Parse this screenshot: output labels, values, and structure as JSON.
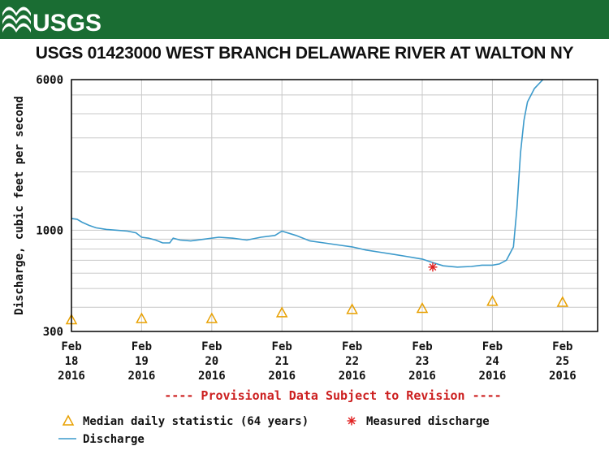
{
  "header": {
    "logo_text": "USGS",
    "title": "USGS 01423000 WEST BRANCH DELAWARE RIVER AT WALTON NY"
  },
  "chart_data": {
    "type": "line",
    "title": "USGS 01423000 WEST BRANCH DELAWARE RIVER AT WALTON NY",
    "ylabel": "Discharge, cubic feet per second",
    "yscale": "log",
    "ylim": [
      300,
      6000
    ],
    "yticks": [
      {
        "value": 300,
        "label": "300"
      },
      {
        "value": 1000,
        "label": "1000"
      },
      {
        "value": 6000,
        "label": "6000"
      }
    ],
    "xticks": [
      {
        "value": 0,
        "label": [
          "Feb",
          "18",
          "2016"
        ]
      },
      {
        "value": 1,
        "label": [
          "Feb",
          "19",
          "2016"
        ]
      },
      {
        "value": 2,
        "label": [
          "Feb",
          "20",
          "2016"
        ]
      },
      {
        "value": 3,
        "label": [
          "Feb",
          "21",
          "2016"
        ]
      },
      {
        "value": 4,
        "label": [
          "Feb",
          "22",
          "2016"
        ]
      },
      {
        "value": 5,
        "label": [
          "Feb",
          "23",
          "2016"
        ]
      },
      {
        "value": 6,
        "label": [
          "Feb",
          "24",
          "2016"
        ]
      },
      {
        "value": 7,
        "label": [
          "Feb",
          "25",
          "2016"
        ]
      }
    ],
    "xlim": [
      0,
      7.5
    ],
    "annotation": "---- Provisional Data Subject to Revision ----",
    "series": [
      {
        "name": "Discharge",
        "color": "#3c9acb",
        "points": [
          [
            0.0,
            1150
          ],
          [
            0.08,
            1140
          ],
          [
            0.15,
            1100
          ],
          [
            0.25,
            1060
          ],
          [
            0.35,
            1030
          ],
          [
            0.5,
            1010
          ],
          [
            0.65,
            1000
          ],
          [
            0.8,
            990
          ],
          [
            0.92,
            970
          ],
          [
            1.0,
            920
          ],
          [
            1.1,
            910
          ],
          [
            1.2,
            890
          ],
          [
            1.3,
            860
          ],
          [
            1.4,
            860
          ],
          [
            1.45,
            910
          ],
          [
            1.55,
            890
          ],
          [
            1.7,
            880
          ],
          [
            1.9,
            900
          ],
          [
            2.1,
            920
          ],
          [
            2.3,
            910
          ],
          [
            2.5,
            890
          ],
          [
            2.7,
            920
          ],
          [
            2.9,
            940
          ],
          [
            3.0,
            990
          ],
          [
            3.2,
            940
          ],
          [
            3.4,
            880
          ],
          [
            3.6,
            860
          ],
          [
            3.8,
            840
          ],
          [
            4.0,
            820
          ],
          [
            4.2,
            790
          ],
          [
            4.4,
            770
          ],
          [
            4.6,
            750
          ],
          [
            4.8,
            730
          ],
          [
            5.0,
            710
          ],
          [
            5.15,
            680
          ],
          [
            5.3,
            655
          ],
          [
            5.5,
            645
          ],
          [
            5.7,
            650
          ],
          [
            5.85,
            660
          ],
          [
            6.0,
            660
          ],
          [
            6.1,
            670
          ],
          [
            6.2,
            700
          ],
          [
            6.3,
            820
          ],
          [
            6.35,
            1300
          ],
          [
            6.4,
            2500
          ],
          [
            6.45,
            3700
          ],
          [
            6.5,
            4600
          ],
          [
            6.6,
            5400
          ],
          [
            6.72,
            6000
          ]
        ]
      },
      {
        "name": "Median daily statistic (64 years)",
        "marker": "triangle",
        "color": "#e8a000",
        "points": [
          [
            0.0,
            345
          ],
          [
            1.0,
            350
          ],
          [
            2.0,
            350
          ],
          [
            3.0,
            375
          ],
          [
            4.0,
            390
          ],
          [
            5.0,
            395
          ],
          [
            6.0,
            430
          ],
          [
            7.0,
            425
          ]
        ]
      },
      {
        "name": "Measured discharge",
        "marker": "asterisk",
        "color": "#e02020",
        "points": [
          [
            5.15,
            645
          ]
        ]
      }
    ],
    "legend": [
      {
        "label": "Median daily statistic (64 years)",
        "symbol": "triangle",
        "color": "#e8a000"
      },
      {
        "label": "Measured discharge",
        "symbol": "asterisk",
        "color": "#e02020"
      },
      {
        "label": "Discharge",
        "symbol": "line",
        "color": "#3c9acb"
      }
    ],
    "grid": true,
    "legend_position": "bottom-left"
  }
}
